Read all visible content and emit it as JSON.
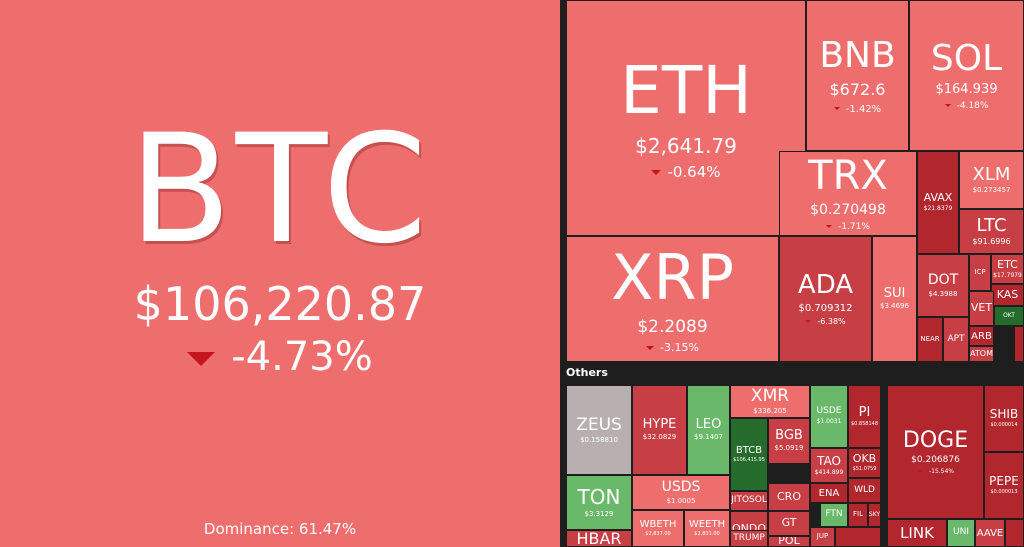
{
  "btc": {
    "symbol": "BTC",
    "price": "$106,220.87",
    "change": "-4.73%",
    "dominance": "Dominance: 61.47%"
  },
  "others_label": "Others",
  "tiles": [
    {
      "id": "eth",
      "symbol": "ETH",
      "price": "$2,641.79",
      "change": "-0.64%",
      "color": "c1",
      "fs": [
        66,
        20,
        15
      ]
    },
    {
      "id": "xrp",
      "symbol": "XRP",
      "price": "$2.2089",
      "change": "-3.15%",
      "color": "c1",
      "fs": [
        62,
        17,
        11
      ]
    },
    {
      "id": "bnb",
      "symbol": "BNB",
      "price": "$672.6",
      "change": "-1.42%",
      "color": "c1",
      "fs": [
        36,
        16,
        10
      ]
    },
    {
      "id": "sol",
      "symbol": "SOL",
      "price": "$164.939",
      "change": "-4.18%",
      "color": "c1",
      "fs": [
        36,
        13,
        9
      ]
    },
    {
      "id": "trx",
      "symbol": "TRX",
      "price": "$0.270498",
      "change": "-1.71%",
      "color": "c1",
      "fs": [
        40,
        14,
        9
      ]
    },
    {
      "id": "ada",
      "symbol": "ADA",
      "price": "$0.709312",
      "change": "-6.38%",
      "color": "c3",
      "fs": [
        26,
        10,
        8
      ]
    },
    {
      "id": "sui",
      "symbol": "SUI",
      "price": "$3.4696",
      "change": "",
      "color": "c1",
      "fs": [
        13,
        7,
        6
      ]
    },
    {
      "id": "avax",
      "symbol": "AVAX",
      "price": "$21.8379",
      "change": "",
      "color": "c4",
      "fs": [
        11,
        6,
        6
      ]
    },
    {
      "id": "xlm",
      "symbol": "XLM",
      "price": "$0.273457",
      "change": "",
      "color": "c1",
      "fs": [
        18,
        7,
        6
      ]
    },
    {
      "id": "ltc",
      "symbol": "LTC",
      "price": "$91.6996",
      "change": "",
      "color": "c3",
      "fs": [
        18,
        8,
        6
      ]
    },
    {
      "id": "dot",
      "symbol": "DOT",
      "price": "$4.3988",
      "change": "",
      "color": "c3",
      "fs": [
        14,
        7,
        6
      ]
    },
    {
      "id": "icp",
      "symbol": "ICP",
      "price": "",
      "change": "",
      "color": "c3",
      "fs": [
        7,
        6,
        6
      ]
    },
    {
      "id": "etc",
      "symbol": "ETC",
      "price": "$17.7979",
      "change": "",
      "color": "c3",
      "fs": [
        11,
        6,
        6
      ]
    },
    {
      "id": "kas",
      "symbol": "KAS",
      "price": "",
      "change": "",
      "color": "c4",
      "fs": [
        11,
        6,
        6
      ]
    },
    {
      "id": "vet",
      "symbol": "VET",
      "price": "",
      "change": "",
      "color": "c3",
      "fs": [
        11,
        6,
        6
      ]
    },
    {
      "id": "near",
      "symbol": "NEAR",
      "price": "",
      "change": "",
      "color": "c4",
      "fs": [
        7,
        6,
        6
      ]
    },
    {
      "id": "apt",
      "symbol": "APT",
      "price": "",
      "change": "",
      "color": "c3",
      "fs": [
        9,
        6,
        6
      ]
    },
    {
      "id": "arb",
      "symbol": "ARB",
      "price": "",
      "change": "",
      "color": "c4",
      "fs": [
        10,
        6,
        6
      ]
    },
    {
      "id": "atom",
      "symbol": "ATOM",
      "price": "",
      "change": "",
      "color": "c3",
      "fs": [
        8,
        6,
        6
      ]
    },
    {
      "id": "okt",
      "symbol": "OKT",
      "price": "",
      "change": "",
      "color": "g2",
      "fs": [
        6,
        6,
        6
      ]
    },
    {
      "id": "sm1",
      "symbol": "",
      "price": "",
      "change": "",
      "color": "c4",
      "fs": [
        6,
        6,
        6
      ]
    },
    {
      "id": "zeus",
      "symbol": "ZEUS",
      "price": "$0.158810",
      "change": "",
      "color": "gr",
      "fs": [
        17,
        7,
        6
      ]
    },
    {
      "id": "hype",
      "symbol": "HYPE",
      "price": "$32.0829",
      "change": "",
      "color": "c3",
      "fs": [
        13,
        7,
        6
      ]
    },
    {
      "id": "leo",
      "symbol": "LEO",
      "price": "$9.1407",
      "change": "",
      "color": "g1",
      "fs": [
        13,
        7,
        6
      ]
    },
    {
      "id": "xmr",
      "symbol": "XMR",
      "price": "$336.205",
      "change": "",
      "color": "c1",
      "fs": [
        17,
        7,
        6
      ]
    },
    {
      "id": "btcb",
      "symbol": "BTCB",
      "price": "$106,415.95",
      "change": "",
      "color": "g2",
      "fs": [
        10,
        5,
        5
      ]
    },
    {
      "id": "bgb",
      "symbol": "BGB",
      "price": "$5.0919",
      "change": "",
      "color": "c3",
      "fs": [
        13,
        7,
        6
      ]
    },
    {
      "id": "usde",
      "symbol": "USDE",
      "price": "$1.0031",
      "change": "",
      "color": "g1",
      "fs": [
        9,
        6,
        6
      ]
    },
    {
      "id": "pi",
      "symbol": "PI",
      "price": "$0.858148",
      "change": "",
      "color": "c4",
      "fs": [
        13,
        5,
        5
      ]
    },
    {
      "id": "tao",
      "symbol": "TAO",
      "price": "$414.899",
      "change": "",
      "color": "c3",
      "fs": [
        12,
        6,
        6
      ]
    },
    {
      "id": "okb",
      "symbol": "OKB",
      "price": "$51.0759",
      "change": "",
      "color": "c4",
      "fs": [
        11,
        5,
        5
      ]
    },
    {
      "id": "ton",
      "symbol": "TON",
      "price": "$3.3129",
      "change": "",
      "color": "g1",
      "fs": [
        20,
        7,
        6
      ]
    },
    {
      "id": "usds",
      "symbol": "USDS",
      "price": "$1.0005",
      "change": "",
      "color": "c1",
      "fs": [
        14,
        7,
        6
      ]
    },
    {
      "id": "jitosol",
      "symbol": "JITOSOL",
      "price": "",
      "change": "",
      "color": "c3",
      "fs": [
        9,
        6,
        6
      ]
    },
    {
      "id": "cro",
      "symbol": "CRO",
      "price": "",
      "change": "",
      "color": "c3",
      "fs": [
        11,
        6,
        6
      ]
    },
    {
      "id": "ena",
      "symbol": "ENA",
      "price": "",
      "change": "",
      "color": "c4",
      "fs": [
        10,
        6,
        6
      ]
    },
    {
      "id": "wld",
      "symbol": "WLD",
      "price": "",
      "change": "",
      "color": "c4",
      "fs": [
        9,
        6,
        6
      ]
    },
    {
      "id": "ftn",
      "symbol": "FTN",
      "price": "",
      "change": "",
      "color": "g1",
      "fs": [
        9,
        6,
        6
      ]
    },
    {
      "id": "fil",
      "symbol": "FIL",
      "price": "",
      "change": "",
      "color": "c4",
      "fs": [
        7,
        6,
        6
      ]
    },
    {
      "id": "sky",
      "symbol": "SKY",
      "price": "",
      "change": "",
      "color": "c4",
      "fs": [
        6,
        6,
        6
      ]
    },
    {
      "id": "ondo",
      "symbol": "ONDO",
      "price": "",
      "change": "",
      "color": "c3",
      "fs": [
        11,
        6,
        6
      ]
    },
    {
      "id": "gt",
      "symbol": "GT",
      "price": "",
      "change": "",
      "color": "c3",
      "fs": [
        11,
        6,
        6
      ]
    },
    {
      "id": "jup",
      "symbol": "JUP",
      "price": "",
      "change": "",
      "color": "c3",
      "fs": [
        7,
        6,
        6
      ]
    },
    {
      "id": "hbar",
      "symbol": "HBAR",
      "price": "",
      "change": "",
      "color": "c3",
      "fs": [
        16,
        6,
        6
      ]
    },
    {
      "id": "wbeth",
      "symbol": "WBETH",
      "price": "$2,837.00",
      "change": "",
      "color": "c1",
      "fs": [
        10,
        5,
        5
      ]
    },
    {
      "id": "weeth",
      "symbol": "WEETH",
      "price": "$2,831.00",
      "change": "",
      "color": "c1",
      "fs": [
        10,
        5,
        5
      ]
    },
    {
      "id": "trump",
      "symbol": "TRUMP",
      "price": "",
      "change": "",
      "color": "c3",
      "fs": [
        9,
        6,
        6
      ]
    },
    {
      "id": "pol",
      "symbol": "POL",
      "price": "",
      "change": "",
      "color": "c3",
      "fs": [
        11,
        6,
        6
      ]
    },
    {
      "id": "sm2",
      "symbol": "",
      "price": "",
      "change": "",
      "color": "c4",
      "fs": [
        6,
        6,
        6
      ]
    },
    {
      "id": "doge",
      "symbol": "DOGE",
      "price": "$0.206876",
      "change": "-15.54%",
      "color": "c4",
      "fs": [
        22,
        9,
        6
      ]
    },
    {
      "id": "shib",
      "symbol": "SHIB",
      "price": "$0.000014",
      "change": "",
      "color": "c4",
      "fs": [
        12,
        5,
        5
      ]
    },
    {
      "id": "pepe",
      "symbol": "PEPE",
      "price": "$0.000013",
      "change": "",
      "color": "c4",
      "fs": [
        12,
        5,
        5
      ]
    },
    {
      "id": "link",
      "symbol": "LINK",
      "price": "",
      "change": "",
      "color": "c4",
      "fs": [
        15,
        6,
        6
      ]
    },
    {
      "id": "uni",
      "symbol": "UNI",
      "price": "",
      "change": "",
      "color": "g1",
      "fs": [
        9,
        6,
        6
      ]
    },
    {
      "id": "aave",
      "symbol": "AAVE",
      "price": "",
      "change": "",
      "color": "c3",
      "fs": [
        10,
        6,
        6
      ]
    },
    {
      "id": "sm3",
      "symbol": "",
      "price": "",
      "change": "",
      "color": "c4",
      "fs": [
        6,
        6,
        6
      ]
    }
  ]
}
